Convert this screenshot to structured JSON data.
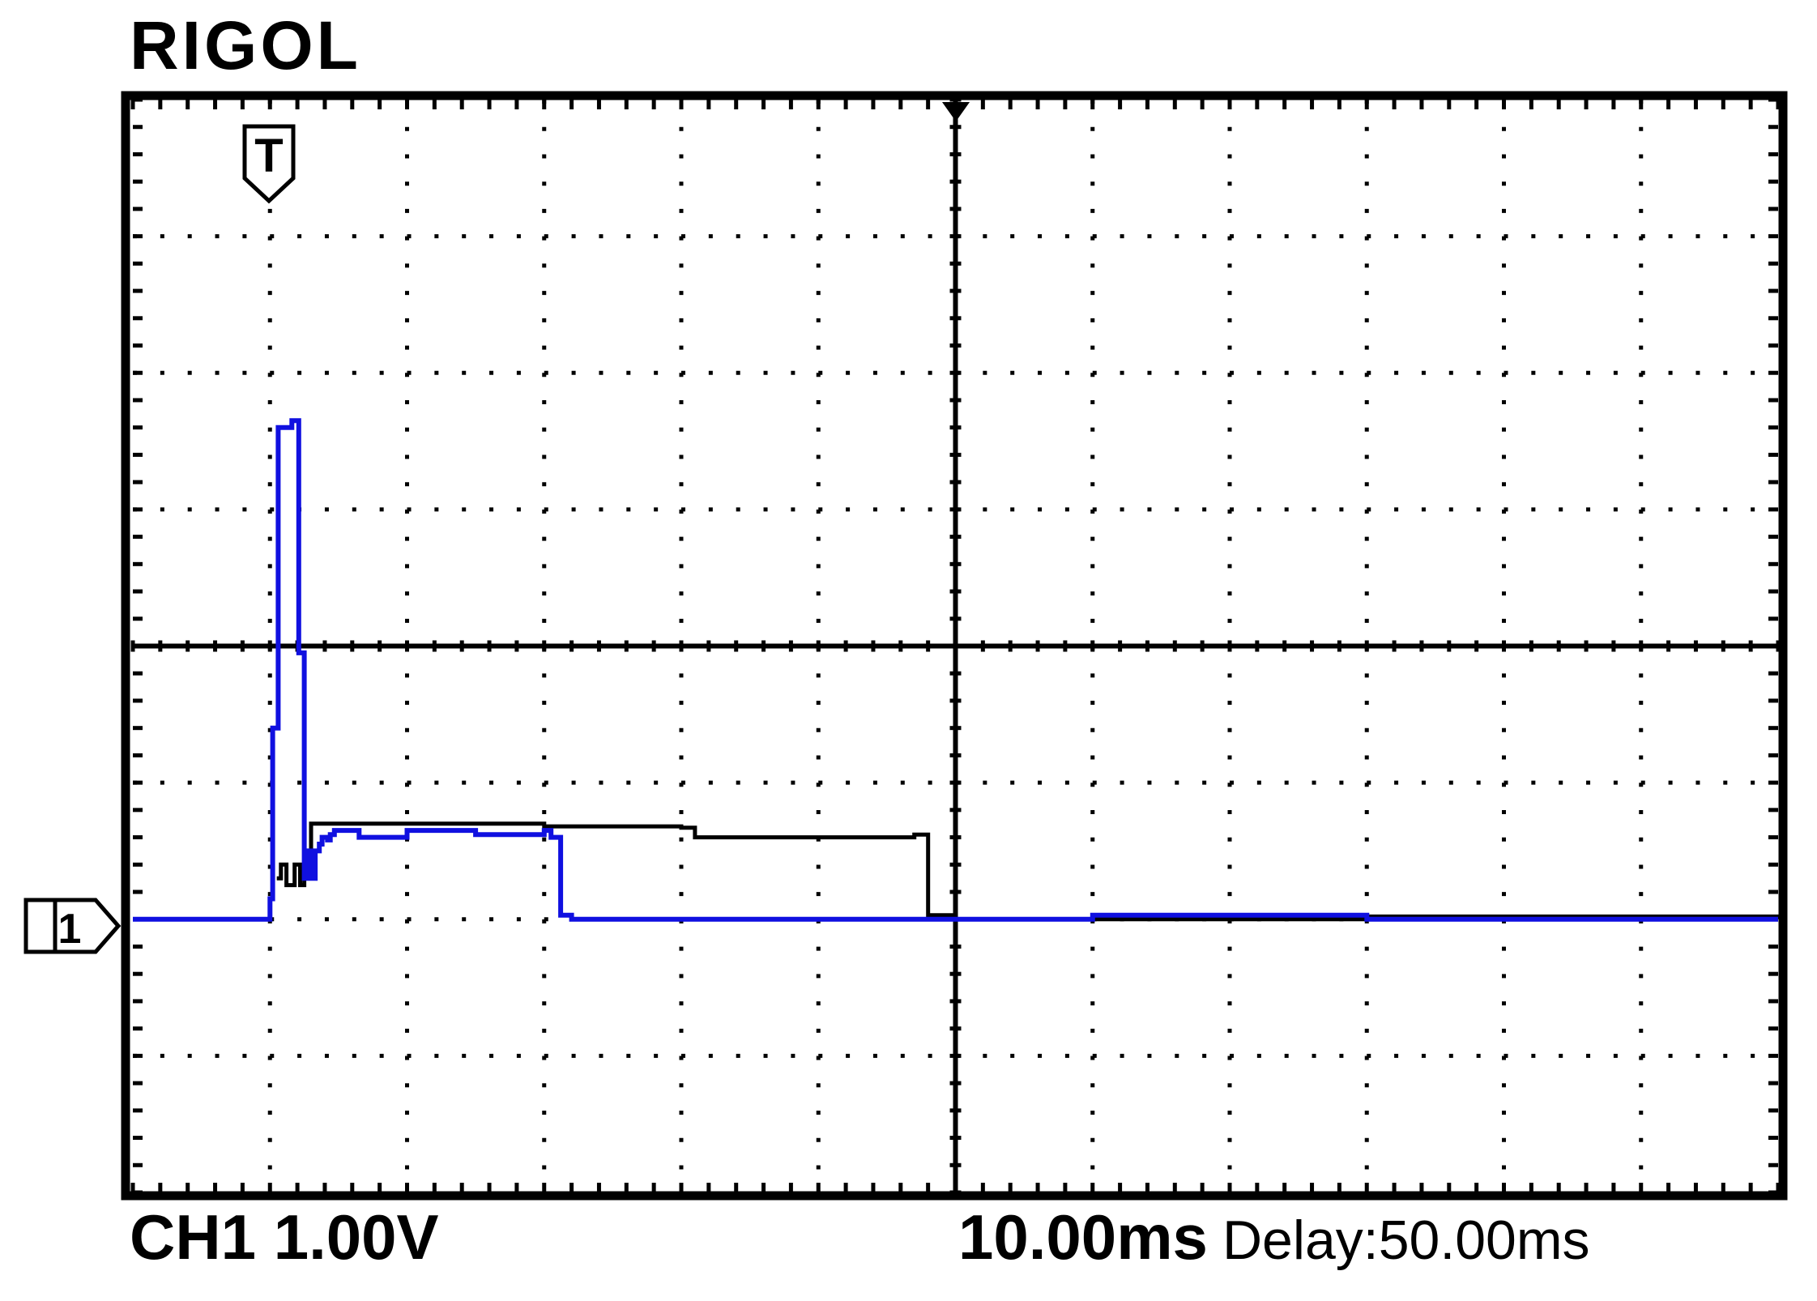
{
  "brand": "RIGOL",
  "status": {
    "channel": "CH1",
    "volts_per_div": "1.00V",
    "time_per_div": "10.00ms",
    "delay_label": "Delay:",
    "delay_value": "50.00ms"
  },
  "markers": {
    "trigger": "T",
    "channel": "1"
  },
  "colors": {
    "ch1_trace": "#1010e0",
    "ch2_trace": "#000000",
    "grid": "#000000",
    "background": "#ffffff"
  },
  "grid": {
    "h_divisions": 12,
    "v_divisions": 8
  },
  "chart_data": {
    "type": "line",
    "x_unit": "div",
    "y_unit": "div",
    "xlim": [
      0,
      12
    ],
    "ylim": [
      -4,
      4
    ],
    "series": [
      {
        "id": "ch1",
        "points": [
          [
            0,
            -2
          ],
          [
            0.9,
            -2
          ],
          [
            1,
            -1.85
          ],
          [
            1.02,
            -0.6
          ],
          [
            1.05,
            -0.6
          ],
          [
            1.06,
            1.6
          ],
          [
            1.14,
            1.6
          ],
          [
            1.16,
            1.65
          ],
          [
            1.2,
            1.65
          ],
          [
            1.21,
            -0.05
          ],
          [
            1.24,
            -0.05
          ],
          [
            1.25,
            -1.7
          ],
          [
            1.27,
            -1.5
          ],
          [
            1.3,
            -1.7
          ],
          [
            1.33,
            -1.5
          ],
          [
            1.36,
            -1.45
          ],
          [
            1.38,
            -1.4
          ],
          [
            1.4,
            -1.4
          ],
          [
            1.42,
            -1.42
          ],
          [
            1.44,
            -1.38
          ],
          [
            1.47,
            -1.35
          ],
          [
            1.65,
            -1.4
          ],
          [
            2,
            -1.35
          ],
          [
            2.5,
            -1.38
          ],
          [
            3,
            -1.35
          ],
          [
            3.05,
            -1.4
          ],
          [
            3.1,
            -1.4
          ],
          [
            3.12,
            -1.97
          ],
          [
            3.2,
            -2
          ],
          [
            5,
            -2
          ],
          [
            7,
            -1.97
          ],
          [
            9,
            -2
          ],
          [
            12,
            -2
          ]
        ]
      },
      {
        "id": "ch2",
        "points": [
          [
            1.05,
            -1.7
          ],
          [
            1.08,
            -1.6
          ],
          [
            1.12,
            -1.75
          ],
          [
            1.18,
            -1.6
          ],
          [
            1.22,
            -1.75
          ],
          [
            1.25,
            -1.6
          ],
          [
            1.28,
            -1.55
          ],
          [
            1.3,
            -1.3
          ],
          [
            2,
            -1.3
          ],
          [
            3,
            -1.32
          ],
          [
            4,
            -1.33
          ],
          [
            4.1,
            -1.4
          ],
          [
            5.7,
            -1.38
          ],
          [
            5.78,
            -1.38
          ],
          [
            5.8,
            -1.97
          ],
          [
            6,
            -2
          ],
          [
            9,
            -1.98
          ],
          [
            12,
            -2
          ]
        ]
      }
    ]
  }
}
